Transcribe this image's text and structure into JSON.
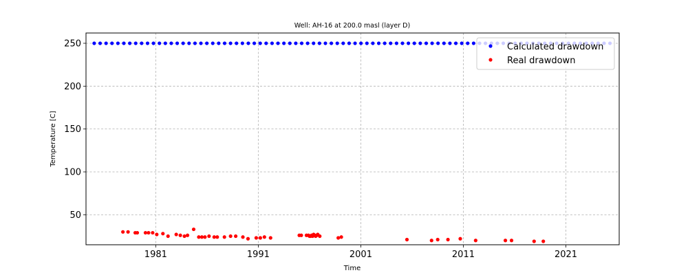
{
  "chart_data": {
    "type": "scatter",
    "title": "Well: AH-16 at 200.0 masl (layer D)",
    "xlabel": "Time",
    "ylabel": "Temperature [C]",
    "xlim": [
      1974.2,
      2026.2
    ],
    "ylim": [
      15,
      262
    ],
    "x_ticks": [
      1981,
      1991,
      2001,
      2011,
      2021
    ],
    "x_tick_labels": [
      "1981",
      "1991",
      "2001",
      "2011",
      "2021"
    ],
    "y_ticks": [
      50,
      100,
      150,
      200,
      250
    ],
    "y_tick_labels": [
      "50",
      "100",
      "150",
      "200",
      "250"
    ],
    "grid": true,
    "legend_position": "top-right",
    "series": [
      {
        "name": "Calculated drawdown",
        "color": "#0000ff",
        "x_start": 1975.0,
        "x_end": 2025.3,
        "count": 88,
        "y_constant": 250
      },
      {
        "name": "Real drawdown",
        "color": "#ff0000",
        "points": [
          [
            1977.8,
            30
          ],
          [
            1978.3,
            30
          ],
          [
            1979.0,
            29
          ],
          [
            1979.2,
            29
          ],
          [
            1980.0,
            29
          ],
          [
            1980.3,
            29
          ],
          [
            1980.7,
            29
          ],
          [
            1981.1,
            27
          ],
          [
            1981.7,
            28
          ],
          [
            1982.2,
            25
          ],
          [
            1983.0,
            27
          ],
          [
            1983.4,
            26
          ],
          [
            1983.8,
            25
          ],
          [
            1984.1,
            26
          ],
          [
            1984.7,
            33
          ],
          [
            1985.2,
            24
          ],
          [
            1985.5,
            24
          ],
          [
            1985.8,
            24
          ],
          [
            1986.2,
            25
          ],
          [
            1986.7,
            24
          ],
          [
            1987.0,
            24
          ],
          [
            1987.7,
            24
          ],
          [
            1988.3,
            25
          ],
          [
            1988.8,
            25
          ],
          [
            1989.5,
            24
          ],
          [
            1990.0,
            22
          ],
          [
            1990.8,
            23
          ],
          [
            1991.2,
            23
          ],
          [
            1991.6,
            24
          ],
          [
            1992.2,
            23
          ],
          [
            1995.0,
            26
          ],
          [
            1995.2,
            26
          ],
          [
            1995.7,
            26
          ],
          [
            1995.9,
            26
          ],
          [
            1996.0,
            25
          ],
          [
            1996.1,
            25
          ],
          [
            1996.2,
            26
          ],
          [
            1996.3,
            25
          ],
          [
            1996.4,
            27
          ],
          [
            1996.5,
            26
          ],
          [
            1996.6,
            25
          ],
          [
            1996.7,
            26
          ],
          [
            1996.8,
            27
          ],
          [
            1997.0,
            25
          ],
          [
            1998.8,
            23
          ],
          [
            1999.1,
            24
          ],
          [
            2005.5,
            21
          ],
          [
            2007.9,
            20
          ],
          [
            2008.5,
            21
          ],
          [
            2009.5,
            21
          ],
          [
            2010.7,
            22
          ],
          [
            2012.2,
            20
          ],
          [
            2015.1,
            20
          ],
          [
            2015.7,
            20
          ],
          [
            2017.9,
            19
          ],
          [
            2018.8,
            19
          ]
        ]
      }
    ]
  }
}
